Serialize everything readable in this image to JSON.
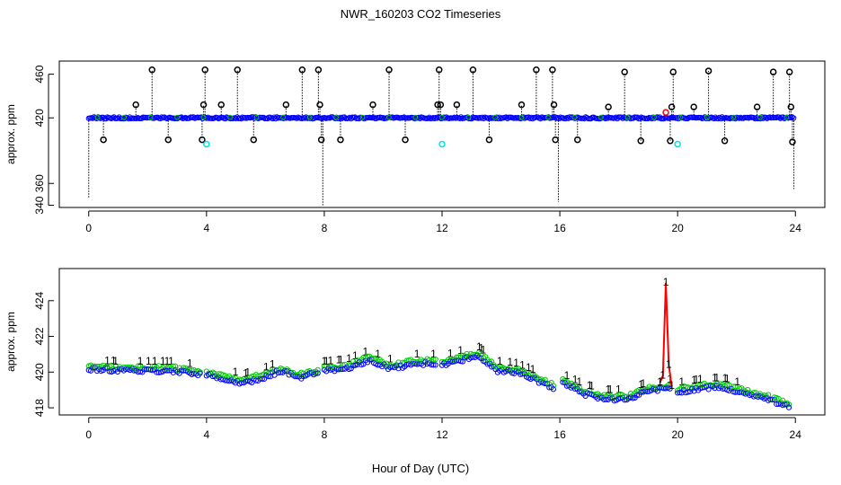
{
  "title": "NWR_160203  CO2 Timeseries",
  "x_axis_title": "Hour of Day (UTC)",
  "colors": {
    "black": "#000000",
    "blue": "#0000ff",
    "cyan": "#00e5e5",
    "red": "#ff0000",
    "green": "#00cc00",
    "dotted": "#000000"
  },
  "chart_data": [
    {
      "type": "scatter",
      "title": "NWR_160203  CO2 Timeseries",
      "xlabel": "",
      "ylabel": "approx. ppm",
      "xlim": [
        -1,
        25
      ],
      "ylim": [
        338,
        472
      ],
      "xticks": [
        0,
        4,
        8,
        12,
        16,
        20,
        24
      ],
      "yticks": [
        340,
        360,
        420,
        460
      ],
      "baseline": 420,
      "series": [
        {
          "name": "black-spikes",
          "marker": "circle",
          "color": "#000000",
          "x": [
            0.5,
            1.6,
            2.15,
            2.7,
            3.85,
            3.9,
            3.95,
            4.5,
            5.05,
            5.6,
            6.7,
            7.25,
            7.8,
            7.85,
            7.9,
            8.55,
            9.65,
            10.2,
            10.75,
            11.85,
            11.9,
            11.95,
            12.5,
            13.05,
            13.6,
            14.7,
            15.2,
            15.75,
            15.8,
            15.85,
            16.6,
            17.65,
            18.2,
            18.75,
            19.75,
            19.8,
            19.85,
            20.55,
            21.05,
            21.6,
            22.7,
            23.25,
            23.8,
            23.85,
            23.9
          ],
          "y": [
            400,
            432,
            464,
            400,
            400,
            432,
            464,
            432,
            464,
            400,
            432,
            464,
            464,
            432,
            400,
            400,
            432,
            464,
            400,
            432,
            464,
            432,
            432,
            464,
            400,
            432,
            464,
            464,
            432,
            400,
            400,
            430,
            462,
            399,
            399,
            430,
            462,
            430,
            463,
            399,
            430,
            462,
            462,
            430,
            398
          ]
        },
        {
          "name": "cyan-points",
          "marker": "circle",
          "color": "#00e5e5",
          "x": [
            4.0,
            12.0,
            20.0
          ],
          "y": [
            396,
            396,
            396
          ]
        },
        {
          "name": "red-point",
          "marker": "circle",
          "color": "#ff0000",
          "x": [
            19.6
          ],
          "y": [
            425
          ]
        },
        {
          "name": "downward-lines",
          "marker": "dotted-line",
          "color": "#000000",
          "segments": [
            [
              0.0,
              420,
              346
            ],
            [
              7.95,
              420,
              340
            ],
            [
              15.95,
              420,
              343
            ],
            [
              23.95,
              420,
              355
            ]
          ]
        }
      ]
    },
    {
      "type": "scatter",
      "title": "",
      "xlabel": "Hour of Day (UTC)",
      "ylabel": "approx. ppm",
      "xlim": [
        -1,
        25
      ],
      "ylim": [
        417.6,
        425.8
      ],
      "xticks": [
        0,
        4,
        8,
        12,
        16,
        20,
        24
      ],
      "yticks": [
        418,
        420,
        422,
        424
      ],
      "series": [
        {
          "name": "1",
          "marker": "text-1",
          "color": "#ff0000"
        },
        {
          "name": "2",
          "marker": "circle",
          "color": "#00cc00"
        },
        {
          "name": "3",
          "marker": "circle",
          "color": "#0000ff"
        }
      ],
      "segments": [
        {
          "start": 0.0,
          "end": 3.8,
          "values": [
            420.3,
            420.2,
            420.2,
            420.2,
            420.0
          ]
        },
        {
          "start": 4.0,
          "end": 7.8,
          "values": [
            420.0,
            419.7,
            419.5,
            419.8,
            420.2,
            419.8,
            420.1
          ]
        },
        {
          "start": 8.0,
          "end": 11.8,
          "values": [
            420.2,
            420.3,
            420.8,
            420.3,
            420.6,
            420.6
          ]
        },
        {
          "start": 12.0,
          "end": 15.8,
          "values": [
            420.5,
            420.8,
            421.0,
            420.2,
            420.1,
            419.7,
            419.2
          ]
        },
        {
          "start": 16.1,
          "end": 19.8,
          "values": [
            419.5,
            418.9,
            418.6,
            418.6,
            419.1,
            419.2
          ]
        },
        {
          "start": 20.0,
          "end": 23.8,
          "values": [
            419.0,
            419.2,
            419.3,
            418.9,
            418.6,
            418.2
          ]
        }
      ],
      "red_spike": {
        "x": [
          19.4,
          19.5,
          19.6,
          19.7,
          19.8
        ],
        "y": [
          419.4,
          419.8,
          425.0,
          420.4,
          419.2
        ]
      }
    }
  ]
}
